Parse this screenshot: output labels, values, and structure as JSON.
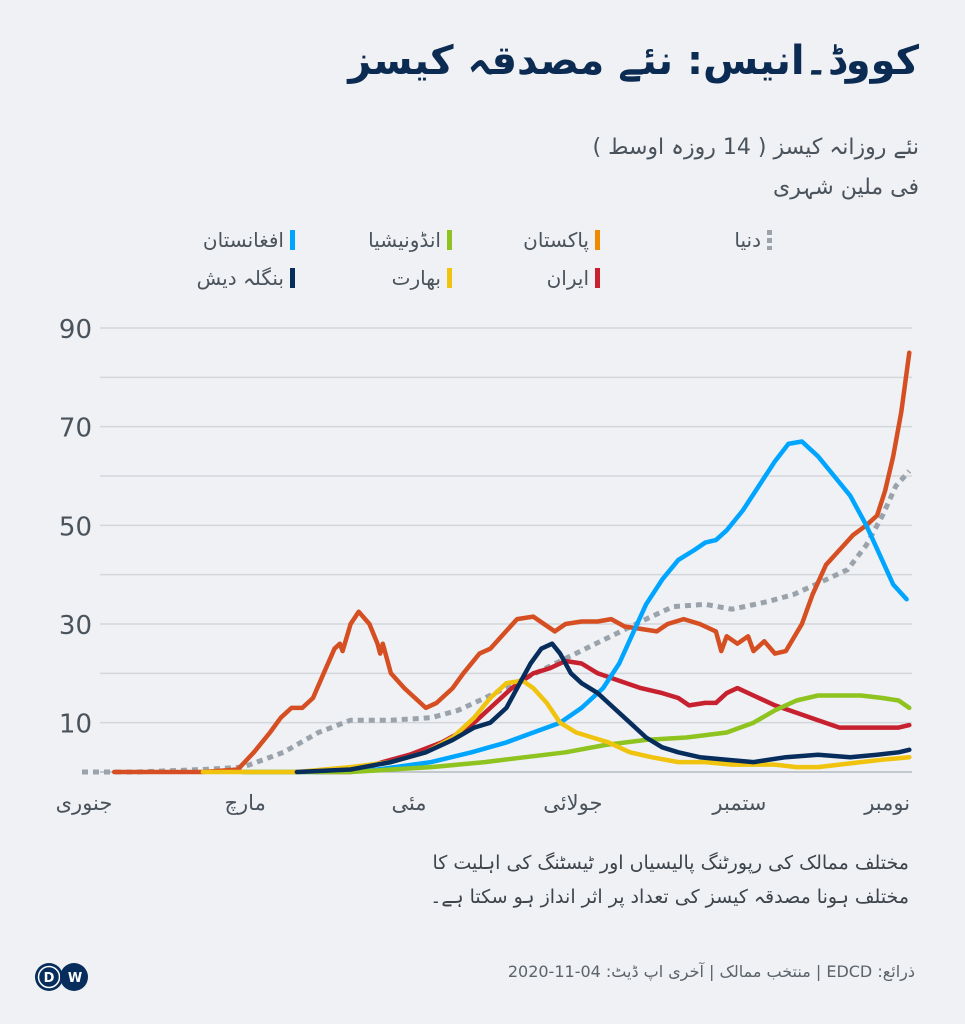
{
  "header": {
    "title": "کووڈ۔انیس: نئے مصدقہ کیسز",
    "subtitle_line1": "نئے روزانہ کیسز ( 14 روزہ اوسط )",
    "subtitle_line2": "فی ملین شہری"
  },
  "footer": {
    "note_line1": "مختلف  ممالک کی رپورٹنگ پالیسیاں اور ٹیسٹنگ کی اہلیت کا",
    "note_line2": "مختلف ہونا مصدقہ کیسز کی تعداد پر اثر انداز ہو سکتا ہے۔",
    "source": "ذرائع: EDCD | منتخب ممالک | آخری اپ ڈیٹ: 04-11-2020",
    "logo_text": "DW"
  },
  "chart_data": {
    "type": "line",
    "title": "کووڈ۔انیس: نئے مصدقہ کیسز",
    "ylabel": "نئے روزانہ کیسز ( 14 روزہ اوسط ) فی ملین شہری",
    "xlabel": "",
    "ylim": [
      0,
      90
    ],
    "yticks": [
      90,
      70,
      50,
      30,
      10
    ],
    "grid": true,
    "legend_position": "top",
    "x_unit": "day of year 2020",
    "xlim": [
      0,
      309
    ],
    "xticks": [
      {
        "day": 0,
        "label": "جنوری"
      },
      {
        "day": 60,
        "label": "مارچ"
      },
      {
        "day": 121,
        "label": "مئی"
      },
      {
        "day": 182,
        "label": "جولائی"
      },
      {
        "day": 244,
        "label": "ستمبر"
      },
      {
        "day": 299,
        "label": "نومبر"
      }
    ],
    "series": [
      {
        "name": "دنیا",
        "color": "#9aa3ab",
        "style": "dotted",
        "points": [
          [
            0,
            0
          ],
          [
            20,
            0
          ],
          [
            45,
            0.5
          ],
          [
            60,
            1
          ],
          [
            75,
            4
          ],
          [
            88,
            8
          ],
          [
            100,
            10.5
          ],
          [
            115,
            10.5
          ],
          [
            130,
            11
          ],
          [
            140,
            12.5
          ],
          [
            150,
            15
          ],
          [
            165,
            19
          ],
          [
            180,
            23
          ],
          [
            195,
            27
          ],
          [
            210,
            31
          ],
          [
            220,
            33.5
          ],
          [
            232,
            34
          ],
          [
            242,
            33
          ],
          [
            255,
            34.5
          ],
          [
            265,
            36
          ],
          [
            275,
            38.5
          ],
          [
            285,
            41
          ],
          [
            292,
            46
          ],
          [
            298,
            52
          ],
          [
            303,
            58
          ],
          [
            308,
            61
          ]
        ]
      },
      {
        "name": "پاکستان",
        "color": "#d64f22",
        "style": "solid",
        "points": [
          [
            12,
            0
          ],
          [
            30,
            0
          ],
          [
            45,
            0
          ],
          [
            58,
            0.5
          ],
          [
            64,
            4
          ],
          [
            70,
            8
          ],
          [
            74,
            11
          ],
          [
            78,
            13
          ],
          [
            82,
            13
          ],
          [
            86,
            15
          ],
          [
            90,
            20
          ],
          [
            94,
            25
          ],
          [
            96,
            26
          ],
          [
            97,
            24.5
          ],
          [
            100,
            30
          ],
          [
            103,
            32.5
          ],
          [
            107,
            30
          ],
          [
            110,
            26
          ],
          [
            111,
            24
          ],
          [
            112,
            26
          ],
          [
            115,
            20
          ],
          [
            120,
            17
          ],
          [
            128,
            13
          ],
          [
            132,
            14
          ],
          [
            138,
            17
          ],
          [
            142,
            20
          ],
          [
            148,
            24
          ],
          [
            152,
            25
          ],
          [
            157,
            28
          ],
          [
            162,
            31
          ],
          [
            168,
            31.5
          ],
          [
            172,
            30
          ],
          [
            176,
            28.5
          ],
          [
            180,
            30
          ],
          [
            186,
            30.5
          ],
          [
            192,
            30.5
          ],
          [
            197,
            31
          ],
          [
            202,
            29.5
          ],
          [
            208,
            29
          ],
          [
            214,
            28.5
          ],
          [
            218,
            30
          ],
          [
            224,
            31
          ],
          [
            230,
            30
          ],
          [
            236,
            28.5
          ],
          [
            238,
            24.5
          ],
          [
            240,
            27.5
          ],
          [
            244,
            26
          ],
          [
            248,
            27.5
          ],
          [
            250,
            24.5
          ],
          [
            254,
            26.5
          ],
          [
            258,
            24
          ],
          [
            262,
            24.5
          ],
          [
            268,
            30
          ],
          [
            272,
            36
          ],
          [
            277,
            42
          ],
          [
            282,
            45
          ],
          [
            287,
            48
          ],
          [
            292,
            50
          ],
          [
            296,
            52
          ],
          [
            299,
            57
          ],
          [
            302,
            64
          ],
          [
            305,
            73
          ],
          [
            308,
            85
          ]
        ]
      },
      {
        "name": "ایران",
        "color": "#c7202f",
        "style": "solid",
        "points": [
          [
            87,
            0
          ],
          [
            100,
            0
          ],
          [
            112,
            2
          ],
          [
            122,
            3.5
          ],
          [
            134,
            6
          ],
          [
            144,
            9
          ],
          [
            152,
            13
          ],
          [
            160,
            17
          ],
          [
            168,
            20
          ],
          [
            174,
            21
          ],
          [
            180,
            22.5
          ],
          [
            186,
            22
          ],
          [
            192,
            20
          ],
          [
            200,
            18.5
          ],
          [
            208,
            17
          ],
          [
            216,
            16
          ],
          [
            222,
            15
          ],
          [
            226,
            13.5
          ],
          [
            232,
            14
          ],
          [
            236,
            14
          ],
          [
            240,
            16
          ],
          [
            244,
            17
          ],
          [
            250,
            15.5
          ],
          [
            258,
            13.5
          ],
          [
            266,
            12
          ],
          [
            274,
            10.5
          ],
          [
            282,
            9
          ],
          [
            290,
            9
          ],
          [
            298,
            9
          ],
          [
            304,
            9
          ],
          [
            308,
            9.5
          ]
        ]
      },
      {
        "name": "افغانستان",
        "color": "#00a5ff",
        "style": "solid",
        "points": [
          [
            60,
            0
          ],
          [
            90,
            0
          ],
          [
            110,
            0.5
          ],
          [
            130,
            2
          ],
          [
            145,
            4
          ],
          [
            158,
            6
          ],
          [
            168,
            8
          ],
          [
            178,
            10
          ],
          [
            186,
            13
          ],
          [
            194,
            17
          ],
          [
            200,
            22
          ],
          [
            205,
            28
          ],
          [
            210,
            34
          ],
          [
            216,
            39
          ],
          [
            222,
            43
          ],
          [
            228,
            45
          ],
          [
            232,
            46.5
          ],
          [
            236,
            47
          ],
          [
            240,
            49
          ],
          [
            246,
            53
          ],
          [
            252,
            58
          ],
          [
            258,
            63
          ],
          [
            263,
            66.5
          ],
          [
            268,
            67
          ],
          [
            274,
            64
          ],
          [
            280,
            60
          ],
          [
            286,
            56
          ],
          [
            292,
            50
          ],
          [
            297,
            44
          ],
          [
            302,
            38
          ],
          [
            307,
            35
          ]
        ]
      },
      {
        "name": "انڈونیشیا",
        "color": "#8fc31f",
        "style": "solid",
        "points": [
          [
            60,
            0
          ],
          [
            100,
            0
          ],
          [
            130,
            1
          ],
          [
            150,
            2
          ],
          [
            165,
            3
          ],
          [
            180,
            4
          ],
          [
            195,
            5.5
          ],
          [
            210,
            6.5
          ],
          [
            225,
            7
          ],
          [
            240,
            8
          ],
          [
            250,
            10
          ],
          [
            258,
            12.5
          ],
          [
            266,
            14.5
          ],
          [
            274,
            15.5
          ],
          [
            282,
            15.5
          ],
          [
            290,
            15.5
          ],
          [
            298,
            15
          ],
          [
            304,
            14.5
          ],
          [
            308,
            13
          ]
        ]
      },
      {
        "name": "بھارت",
        "color": "#f0c30f",
        "style": "solid",
        "points": [
          [
            45,
            0
          ],
          [
            80,
            0
          ],
          [
            100,
            1
          ],
          [
            115,
            2
          ],
          [
            128,
            4
          ],
          [
            138,
            7
          ],
          [
            146,
            11
          ],
          [
            152,
            15
          ],
          [
            158,
            18
          ],
          [
            164,
            18.5
          ],
          [
            168,
            17
          ],
          [
            173,
            14
          ],
          [
            178,
            10
          ],
          [
            184,
            8
          ],
          [
            190,
            7
          ],
          [
            196,
            6
          ],
          [
            204,
            4
          ],
          [
            212,
            3
          ],
          [
            222,
            2
          ],
          [
            232,
            2
          ],
          [
            242,
            1.5
          ],
          [
            250,
            1.5
          ],
          [
            258,
            1.5
          ],
          [
            266,
            1
          ],
          [
            274,
            1
          ],
          [
            282,
            1.5
          ],
          [
            290,
            2
          ],
          [
            298,
            2.5
          ],
          [
            308,
            3
          ]
        ]
      },
      {
        "name": "بنگلہ دیش",
        "color": "#062d5c",
        "style": "solid",
        "points": [
          [
            80,
            0
          ],
          [
            100,
            0.5
          ],
          [
            115,
            2
          ],
          [
            128,
            4
          ],
          [
            138,
            6.5
          ],
          [
            146,
            9
          ],
          [
            152,
            10
          ],
          [
            158,
            13
          ],
          [
            163,
            18
          ],
          [
            167,
            22
          ],
          [
            171,
            25
          ],
          [
            175,
            26
          ],
          [
            178,
            24
          ],
          [
            182,
            20
          ],
          [
            186,
            18
          ],
          [
            192,
            16
          ],
          [
            198,
            13
          ],
          [
            204,
            10
          ],
          [
            210,
            7
          ],
          [
            216,
            5
          ],
          [
            222,
            4
          ],
          [
            230,
            3
          ],
          [
            240,
            2.5
          ],
          [
            250,
            2
          ],
          [
            262,
            3
          ],
          [
            274,
            3.5
          ],
          [
            286,
            3
          ],
          [
            296,
            3.5
          ],
          [
            304,
            4
          ],
          [
            308,
            4.5
          ]
        ]
      }
    ]
  },
  "legend": [
    {
      "label": "دنیا",
      "color": "#9aa3ab",
      "style": "dotted"
    },
    {
      "label": "پاکستان",
      "color": "#f08a00",
      "style": "solid"
    },
    {
      "label": "انڈونیشیا",
      "color": "#8fc31f",
      "style": "solid"
    },
    {
      "label": "افغانستان",
      "color": "#00a5ff",
      "style": "solid"
    },
    {
      "label": "ایران",
      "color": "#c7202f",
      "style": "solid"
    },
    {
      "label": "بھارت",
      "color": "#f0c30f",
      "style": "solid"
    },
    {
      "label": "بنگلہ دیش",
      "color": "#062d5c",
      "style": "solid"
    }
  ]
}
